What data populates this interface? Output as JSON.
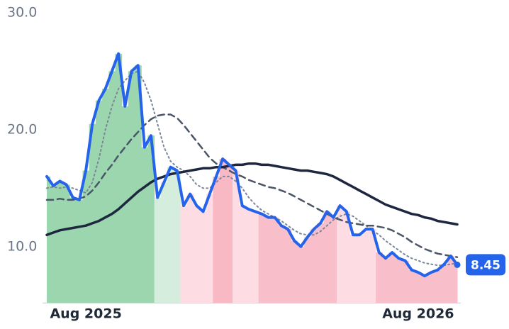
{
  "chart_data": {
    "type": "line",
    "categories": [
      null,
      null,
      null,
      null,
      null,
      null,
      "Aug 2025",
      null,
      null,
      null,
      null,
      null,
      null,
      null,
      null,
      null,
      null,
      null,
      null,
      null,
      null,
      null,
      null,
      null,
      null,
      null,
      null,
      null,
      null,
      null,
      null,
      null,
      null,
      null,
      null,
      null,
      null,
      null,
      null,
      null,
      null,
      null,
      null,
      null,
      null,
      null,
      null,
      null,
      null,
      null,
      null,
      null,
      null,
      null,
      null,
      null,
      null,
      "Aug 2026",
      null,
      null,
      null,
      null,
      null,
      null
    ],
    "ylim": [
      5.2,
      30
    ],
    "yticks": [
      {
        "value": 10,
        "label": "10.0"
      },
      {
        "value": 20,
        "label": "20.0"
      },
      {
        "value": 30,
        "label": "30.0"
      }
    ],
    "area_colors": [
      "#9bd6ae",
      "#9bd6ae",
      "#9bd6ae",
      "#9bd6ae",
      "#9bd6ae",
      "#9bd6ae",
      "#9bd6ae",
      "#9bd6ae",
      "#9bd6ae",
      "#9bd6ae",
      "#9bd6ae",
      "#9bd6ae",
      "#9bd6ae",
      "#9bd6ae",
      "#9bd6ae",
      "#9bd6ae",
      "#9bd6ae",
      "#d4eddc",
      "#d4eddc",
      "#d4eddc",
      "#d4eddc",
      "#fddde3",
      "#fddde3",
      "#fddde3",
      "#fddde3",
      "#fddde3",
      "#f8b8c4",
      "#f8b8c4",
      "#f8b8c4",
      "#fddde3",
      "#fddde3",
      "#fddde3",
      "#fddde3",
      "#f8bfca",
      "#f8bfca",
      "#f8bfca",
      "#f8bfca",
      "#f8bfca",
      "#f8bfca",
      "#f8bfca",
      "#f8bfca",
      "#f8bfca",
      "#f8bfca",
      "#f8bfca",
      "#f8bfca",
      "#fddde3",
      "#fddde3",
      "#fddde3",
      "#fddde3",
      "#fddde3",
      "#fddde3",
      "#f8bfca",
      "#f8bfca",
      "#f8bfca",
      "#f8bfca",
      "#f8bfca",
      "#f8bfca",
      "#f8bfca",
      "#f8bfca",
      "#f8bfca",
      "#f8bfca",
      "#f8bfca",
      "#f8bfca",
      "#f8bfca"
    ],
    "series": [
      {
        "color": "#2563eb",
        "style": "solid",
        "width": 4,
        "values": [
          16.0,
          15.2,
          15.6,
          15.3,
          14.2,
          14.0,
          16.5,
          20.5,
          22.5,
          23.5,
          25.0,
          26.5,
          22.0,
          25.0,
          25.5,
          18.5,
          19.5,
          14.2,
          15.5,
          16.8,
          16.5,
          13.5,
          14.5,
          13.5,
          13.0,
          14.5,
          16.0,
          17.5,
          17.0,
          16.5,
          13.5,
          13.2,
          13.0,
          12.8,
          12.5,
          12.5,
          11.8,
          11.5,
          10.5,
          10.0,
          10.8,
          11.5,
          12.0,
          13.0,
          12.5,
          13.5,
          13.0,
          11.0,
          11.0,
          11.5,
          11.5,
          9.5,
          9.0,
          9.5,
          9.0,
          8.8,
          8.0,
          7.8,
          7.5,
          7.8,
          8.0,
          8.5,
          9.2,
          8.45
        ]
      },
      {
        "color": "#1e2640",
        "style": "solid",
        "width": 3.5,
        "values": [
          11.0,
          11.2,
          11.4,
          11.5,
          11.6,
          11.7,
          11.8,
          12.0,
          12.2,
          12.5,
          12.8,
          13.2,
          13.7,
          14.2,
          14.7,
          15.1,
          15.5,
          15.8,
          16.0,
          16.2,
          16.3,
          16.4,
          16.5,
          16.6,
          16.7,
          16.7,
          16.8,
          16.8,
          16.9,
          17.0,
          17.0,
          17.1,
          17.1,
          17.0,
          17.0,
          16.9,
          16.8,
          16.7,
          16.6,
          16.5,
          16.5,
          16.4,
          16.3,
          16.2,
          16.0,
          15.7,
          15.4,
          15.1,
          14.8,
          14.5,
          14.2,
          13.9,
          13.6,
          13.4,
          13.2,
          13.0,
          12.8,
          12.7,
          12.5,
          12.4,
          12.2,
          12.1,
          12.0,
          11.9
        ]
      },
      {
        "color": "#4b5568",
        "style": "dashed",
        "width": 2.5,
        "values": [
          14.0,
          14.0,
          14.1,
          14.0,
          14.0,
          14.1,
          14.3,
          14.8,
          15.5,
          16.3,
          17.0,
          17.8,
          18.5,
          19.2,
          19.8,
          20.4,
          20.9,
          21.2,
          21.3,
          21.3,
          21.0,
          20.4,
          19.7,
          19.0,
          18.3,
          17.6,
          17.1,
          16.8,
          16.5,
          16.2,
          16.0,
          15.7,
          15.5,
          15.3,
          15.1,
          15.0,
          14.8,
          14.6,
          14.3,
          14.0,
          13.7,
          13.4,
          13.1,
          12.8,
          12.5,
          12.3,
          12.1,
          12.0,
          11.9,
          11.8,
          11.8,
          11.7,
          11.6,
          11.4,
          11.1,
          10.8,
          10.4,
          10.1,
          9.8,
          9.6,
          9.4,
          9.3,
          9.2,
          9.1
        ]
      },
      {
        "color": "#7a8699",
        "style": "dotted",
        "width": 2,
        "values": [
          15.0,
          15.1,
          15.0,
          15.1,
          15.0,
          14.8,
          14.6,
          15.5,
          17.5,
          20.0,
          22.0,
          23.5,
          24.2,
          24.8,
          25.0,
          24.0,
          22.5,
          20.5,
          18.5,
          17.3,
          16.8,
          16.5,
          16.0,
          15.3,
          15.0,
          15.0,
          15.5,
          16.0,
          16.0,
          15.6,
          15.0,
          14.2,
          13.6,
          13.1,
          12.8,
          12.5,
          12.2,
          11.8,
          11.4,
          11.1,
          11.0,
          11.0,
          11.3,
          11.8,
          12.3,
          12.6,
          12.8,
          12.6,
          12.2,
          11.8,
          11.4,
          11.0,
          10.5,
          10.1,
          9.7,
          9.3,
          9.0,
          8.8,
          8.6,
          8.5,
          8.4,
          8.4,
          8.5,
          8.6
        ]
      }
    ]
  }
}
